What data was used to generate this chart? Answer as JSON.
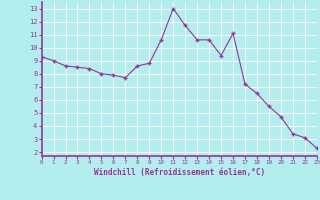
{
  "x": [
    0,
    1,
    2,
    3,
    4,
    5,
    6,
    7,
    8,
    9,
    10,
    11,
    12,
    13,
    14,
    15,
    16,
    17,
    18,
    19,
    20,
    21,
    22,
    23
  ],
  "y": [
    9.3,
    9.0,
    8.6,
    8.5,
    8.4,
    8.0,
    7.9,
    7.7,
    8.6,
    8.8,
    10.6,
    13.0,
    11.7,
    10.6,
    10.6,
    9.4,
    11.1,
    7.2,
    6.5,
    5.5,
    4.7,
    3.4,
    3.1,
    2.3
  ],
  "line_color": "#993399",
  "marker_color": "#993399",
  "bg_color": "#b2eeee",
  "grid_color": "#ffffff",
  "ylabel_ticks": [
    2,
    3,
    4,
    5,
    6,
    7,
    8,
    9,
    10,
    11,
    12,
    13
  ],
  "xlabel_ticks": [
    0,
    1,
    2,
    3,
    4,
    5,
    6,
    7,
    8,
    9,
    10,
    11,
    12,
    13,
    14,
    15,
    16,
    17,
    18,
    19,
    20,
    21,
    22,
    23
  ],
  "xlabel": "Windchill (Refroidissement éolien,°C)",
  "ylim": [
    1.7,
    13.5
  ],
  "xlim": [
    0,
    23
  ],
  "label_color": "#993399",
  "tick_color": "#993399",
  "border_color": "#993399",
  "spine_color": "#993399"
}
